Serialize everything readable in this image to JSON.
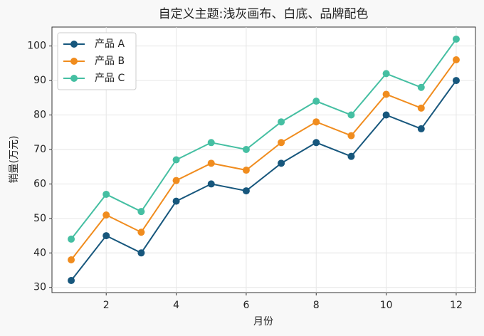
{
  "chart_data": {
    "type": "line",
    "title": "自定义主题:浅灰画布、白底、品牌配色",
    "xlabel": "月份",
    "ylabel": "销量(万元)",
    "x": [
      1,
      2,
      3,
      4,
      5,
      6,
      7,
      8,
      9,
      10,
      11,
      12
    ],
    "series": [
      {
        "name": "产品 A",
        "color": "#17577d",
        "values": [
          32,
          45,
          40,
          55,
          60,
          58,
          66,
          72,
          68,
          80,
          76,
          90
        ]
      },
      {
        "name": "产品 B",
        "color": "#f08c1e",
        "values": [
          38,
          51,
          46,
          61,
          66,
          64,
          72,
          78,
          74,
          86,
          82,
          96
        ]
      },
      {
        "name": "产品 C",
        "color": "#45bfa2",
        "values": [
          44,
          57,
          52,
          67,
          72,
          70,
          78,
          84,
          80,
          92,
          88,
          102
        ]
      }
    ],
    "xlim": [
      0.45,
      12.55
    ],
    "xticks": [
      2,
      4,
      6,
      8,
      10,
      12
    ],
    "ylim": [
      28.5,
      105.5
    ],
    "yticks": [
      30,
      40,
      50,
      60,
      70,
      80,
      90,
      100
    ],
    "grid": true,
    "legend": "upper-left"
  }
}
